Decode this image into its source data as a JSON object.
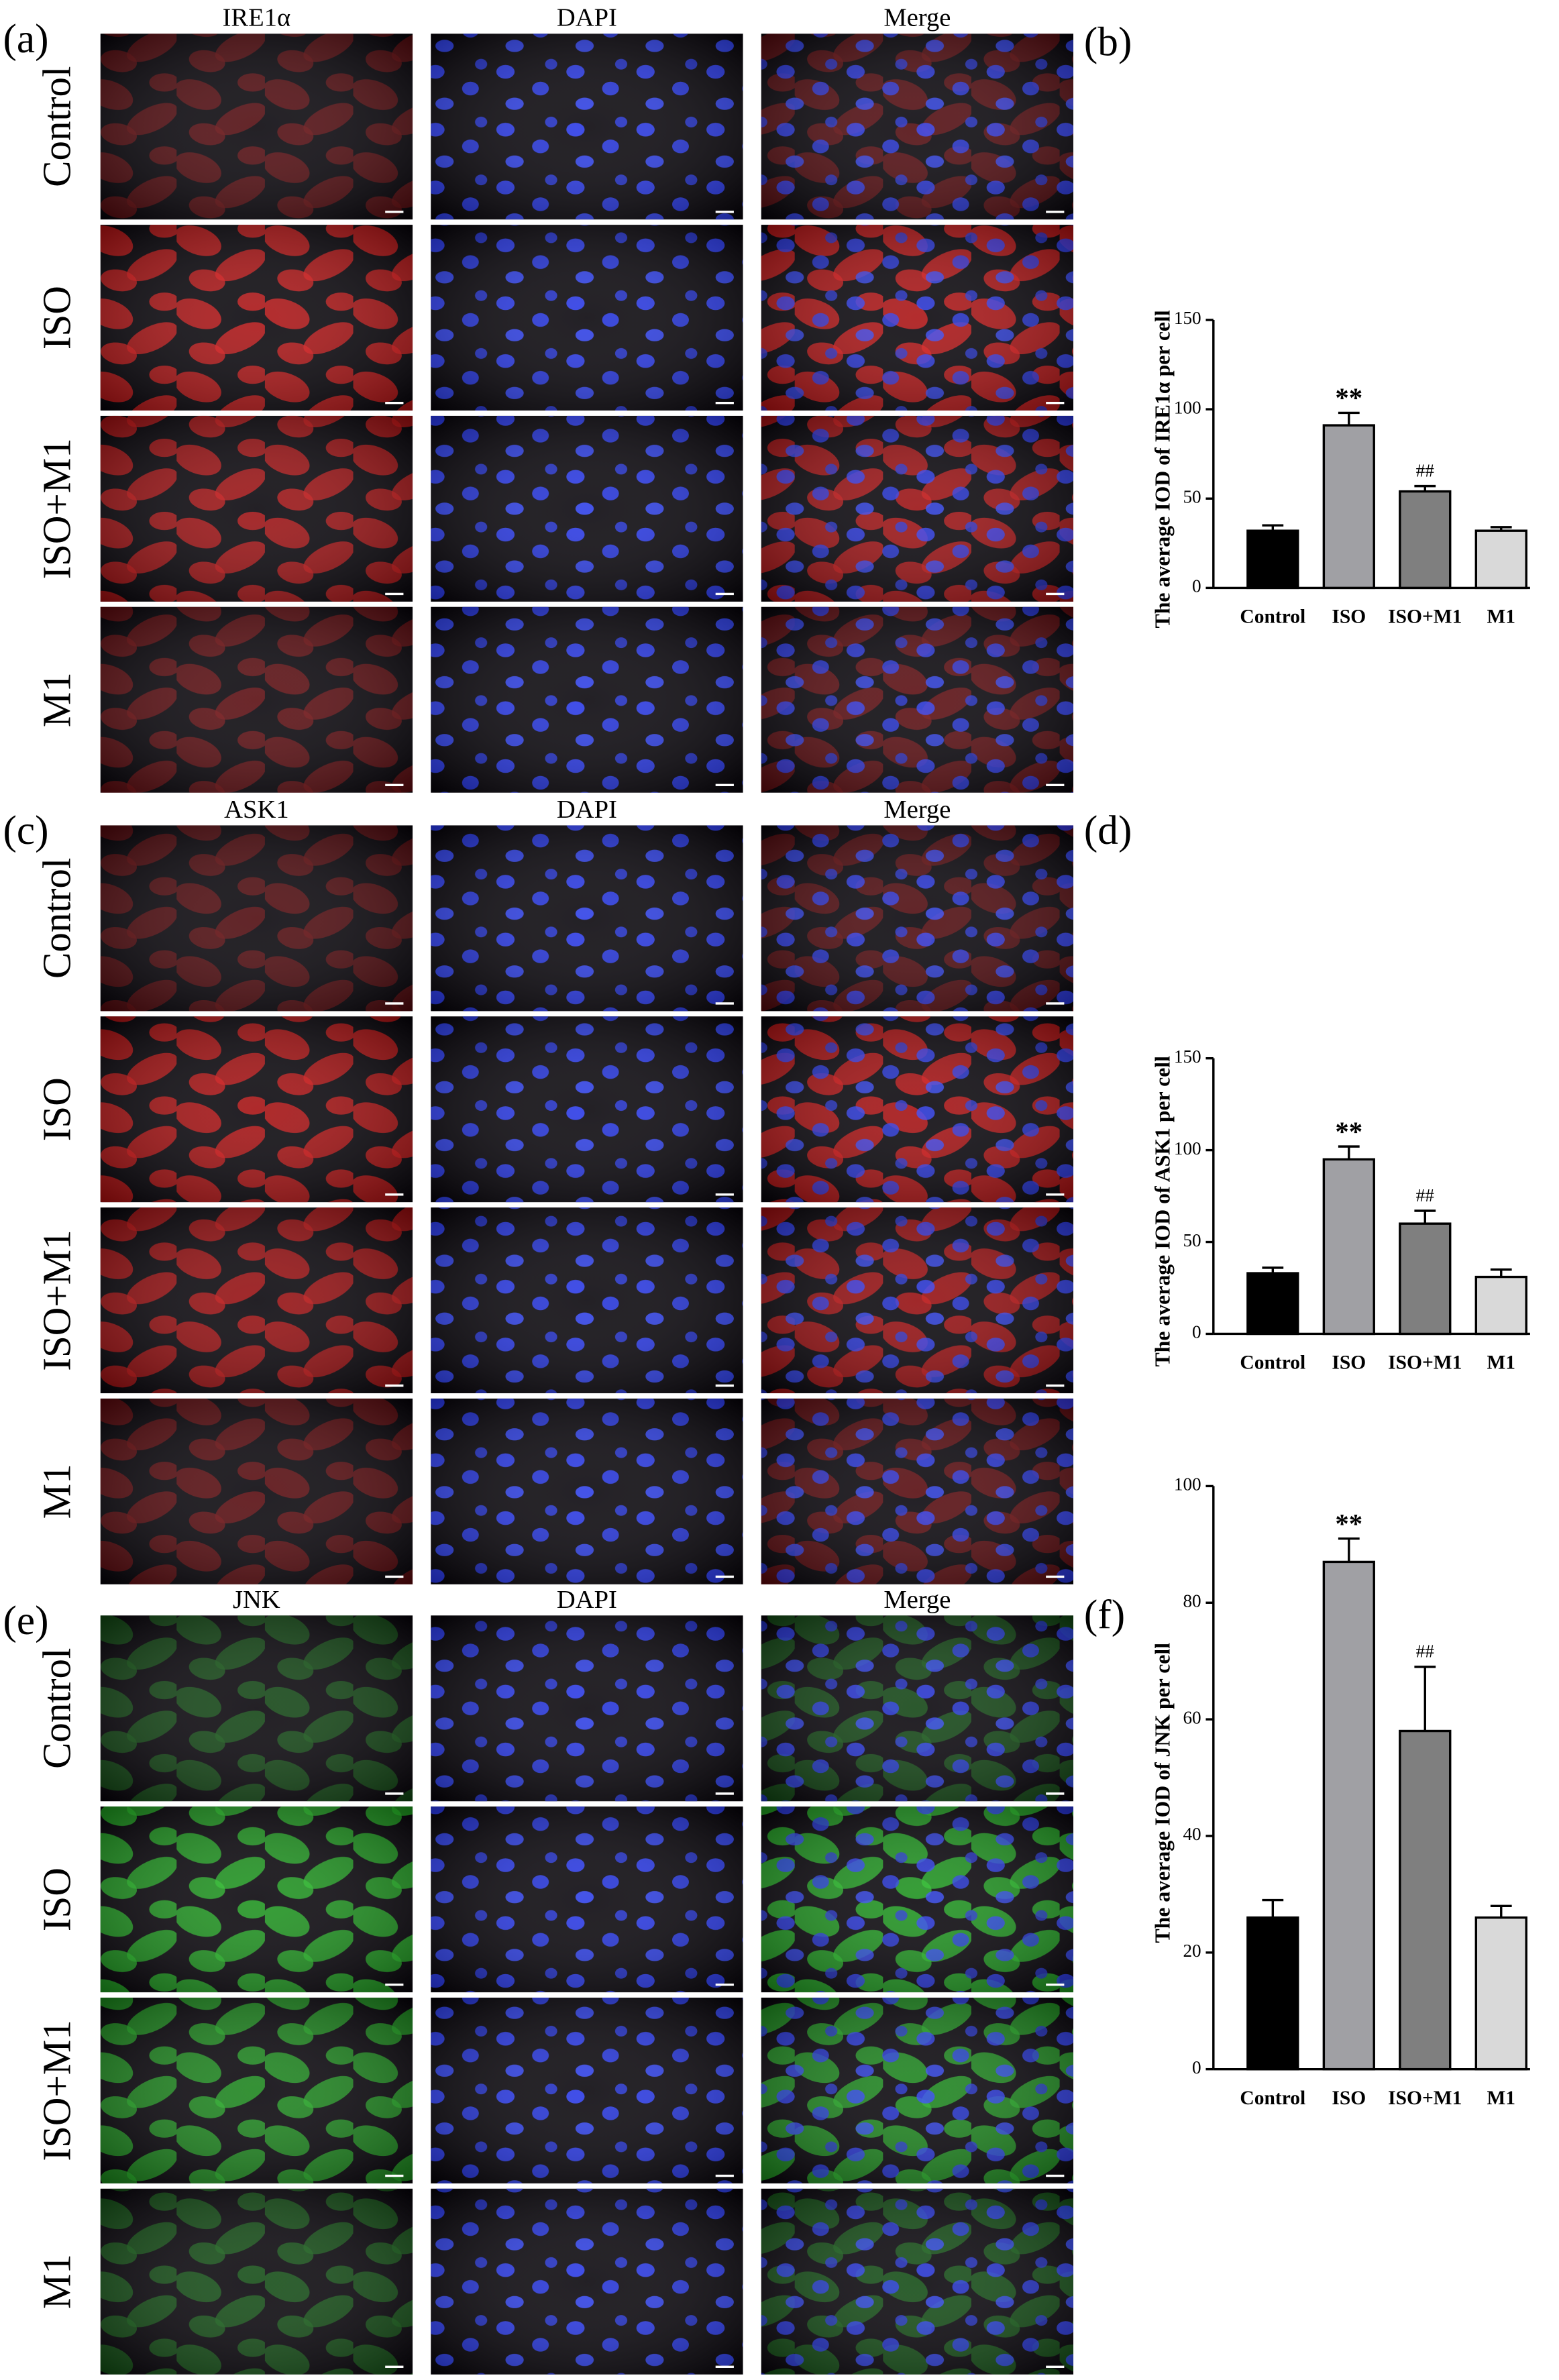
{
  "figure": {
    "panels": [
      {
        "label": "(a)",
        "color": "#e01414",
        "columns": [
          "IRE1α",
          "DAPI",
          "Merge"
        ],
        "rows": [
          "Control",
          "ISO",
          "ISO+M1",
          "M1"
        ]
      },
      {
        "label": "(c)",
        "color": "#d81010",
        "columns": [
          "ASK1",
          "DAPI",
          "Merge"
        ],
        "rows": [
          "Control",
          "ISO",
          "ISO+M1",
          "M1"
        ]
      },
      {
        "label": "(e)",
        "color": "#22c022",
        "columns": [
          "JNK",
          "DAPI",
          "Merge"
        ],
        "rows": [
          "Control",
          "ISO",
          "ISO+M1",
          "M1"
        ]
      }
    ]
  },
  "chart_data": [
    {
      "type": "bar",
      "panel_label": "(b)",
      "y_label": "The average IOD of IRE1α per cell",
      "categories": [
        "Control",
        "ISO",
        "ISO+M1",
        "M1"
      ],
      "values": [
        32,
        91,
        54,
        32
      ],
      "errors": [
        3,
        7,
        3,
        2
      ],
      "significance": [
        null,
        "**",
        "##",
        null
      ],
      "colors": [
        "#000000",
        "#a0a0a4",
        "#7f7f7f",
        "#d9d9d9"
      ],
      "ylim": [
        0,
        150
      ],
      "yticks": [
        0,
        50,
        100,
        150
      ]
    },
    {
      "type": "bar",
      "panel_label": "(d)",
      "y_label": "The average IOD of ASK1 per cell",
      "categories": [
        "Control",
        "ISO",
        "ISO+M1",
        "M1"
      ],
      "values": [
        33,
        95,
        60,
        31
      ],
      "errors": [
        3,
        7,
        7,
        4
      ],
      "significance": [
        null,
        "**",
        "##",
        null
      ],
      "colors": [
        "#000000",
        "#a0a0a4",
        "#7f7f7f",
        "#d9d9d9"
      ],
      "ylim": [
        0,
        150
      ],
      "yticks": [
        0,
        50,
        100,
        150
      ]
    },
    {
      "type": "bar",
      "panel_label": "(f)",
      "y_label": "The average IOD of JNK per cell",
      "categories": [
        "Control",
        "ISO",
        "ISO+M1",
        "M1"
      ],
      "values": [
        26,
        87,
        58,
        26
      ],
      "errors": [
        3,
        4,
        11,
        2
      ],
      "significance": [
        null,
        "**",
        "##",
        null
      ],
      "colors": [
        "#000000",
        "#a0a0a4",
        "#7f7f7f",
        "#d9d9d9"
      ],
      "ylim": [
        0,
        100
      ],
      "yticks": [
        0,
        20,
        40,
        60,
        80,
        100
      ]
    }
  ]
}
